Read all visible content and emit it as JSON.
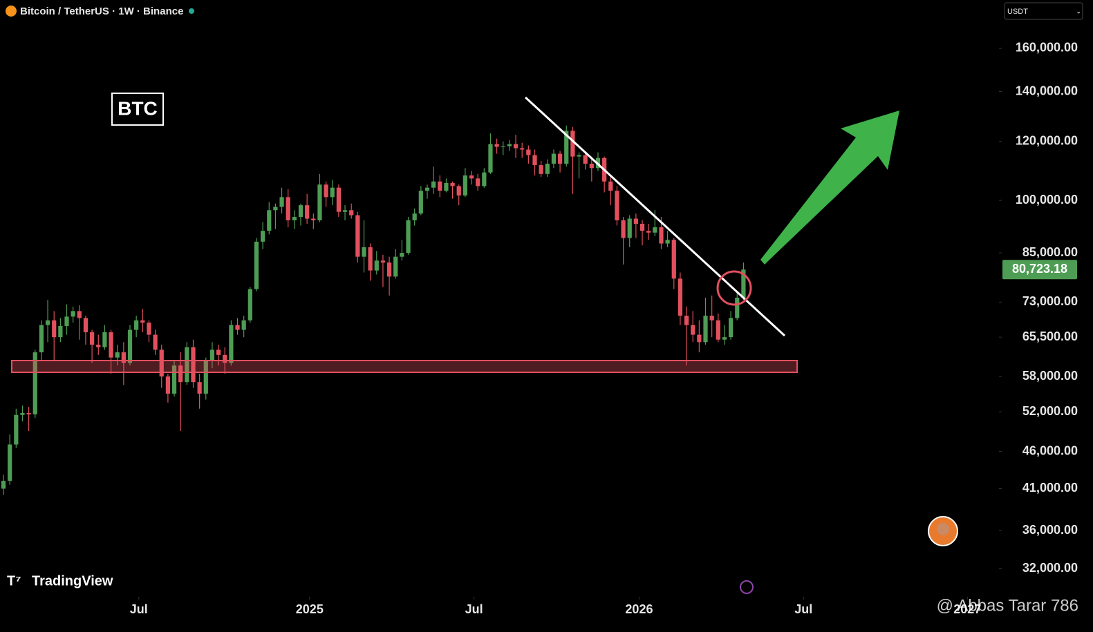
{
  "chart_data": {
    "type": "candlestick",
    "title": "Bitcoin / TetherUS · 1W · Binance",
    "currency": "USDT",
    "annotation": "BTC",
    "brand": "TradingView",
    "watermark": "@ Abbas Tarar 786",
    "log_scale": true,
    "up_color": "#4e9d55",
    "down_color": "#e2505e",
    "last_price_label": "80,723.18",
    "ylim": [
      29600,
      185800
    ],
    "yticks": [
      {
        "value": 160000,
        "label": "160,000.00"
      },
      {
        "value": 140000,
        "label": "140,000.00"
      },
      {
        "value": 120000,
        "label": "120,000.00"
      },
      {
        "value": 100000,
        "label": "100,000.00"
      },
      {
        "value": 85000,
        "label": "85,000.00"
      },
      {
        "value": 73000,
        "label": "73,000.00"
      },
      {
        "value": 65500,
        "label": "65,500.00"
      },
      {
        "value": 58000,
        "label": "58,000.00"
      },
      {
        "value": 52000,
        "label": "52,000.00"
      },
      {
        "value": 46000,
        "label": "46,000.00"
      },
      {
        "value": 41000,
        "label": "41,000.00"
      },
      {
        "value": 36000,
        "label": "36,000.00"
      },
      {
        "value": 32000,
        "label": "32,000.00"
      }
    ],
    "xlim": [
      -0.55,
      157.4
    ],
    "xticks": [
      {
        "value": 21.4,
        "label": "Jul"
      },
      {
        "value": 48.4,
        "label": "2025"
      },
      {
        "value": 74.4,
        "label": "Jul"
      },
      {
        "value": 100.5,
        "label": "2026"
      },
      {
        "value": 126.5,
        "label": "Jul"
      },
      {
        "value": 152.4,
        "label": "2027"
      }
    ],
    "ohlc": [
      [
        41000,
        42800,
        40200,
        42000
      ],
      [
        42000,
        48500,
        41500,
        47000
      ],
      [
        47000,
        52500,
        46500,
        51500
      ],
      [
        51500,
        53000,
        50500,
        51800
      ],
      [
        51800,
        52800,
        49000,
        51600
      ],
      [
        51600,
        63000,
        51000,
        62500
      ],
      [
        62500,
        69000,
        61000,
        68000
      ],
      [
        68000,
        73500,
        64500,
        69000
      ],
      [
        69000,
        71000,
        61000,
        65500
      ],
      [
        65500,
        69500,
        64500,
        67800
      ],
      [
        67800,
        72500,
        66000,
        69800
      ],
      [
        69800,
        72000,
        68500,
        71000
      ],
      [
        71000,
        72300,
        65000,
        69500
      ],
      [
        69500,
        70000,
        64000,
        66500
      ],
      [
        66500,
        67000,
        60500,
        64000
      ],
      [
        64000,
        66000,
        62000,
        63500
      ],
      [
        63500,
        68000,
        63000,
        66500
      ],
      [
        66500,
        67000,
        58500,
        61500
      ],
      [
        61500,
        64000,
        60000,
        62500
      ],
      [
        62500,
        64500,
        56500,
        60500
      ],
      [
        60500,
        68000,
        60000,
        67000
      ],
      [
        67000,
        70000,
        65500,
        69000
      ],
      [
        69000,
        71500,
        66500,
        68500
      ],
      [
        68500,
        69000,
        64500,
        66000
      ],
      [
        66000,
        67000,
        62000,
        63000
      ],
      [
        63000,
        64000,
        56000,
        58000
      ],
      [
        58000,
        58500,
        53500,
        55000
      ],
      [
        55000,
        61000,
        54500,
        60000
      ],
      [
        60000,
        62500,
        49000,
        57000
      ],
      [
        57000,
        64500,
        56500,
        63500
      ],
      [
        63500,
        65000,
        56000,
        57000
      ],
      [
        57000,
        58500,
        52500,
        55000
      ],
      [
        55000,
        61500,
        54000,
        61000
      ],
      [
        61000,
        64500,
        59500,
        63000
      ],
      [
        63000,
        64000,
        60000,
        62000
      ],
      [
        62000,
        63500,
        58500,
        60500
      ],
      [
        60500,
        69000,
        60000,
        68000
      ],
      [
        68000,
        69500,
        66000,
        67000
      ],
      [
        67000,
        70000,
        65500,
        69000
      ],
      [
        69000,
        76500,
        68500,
        76000
      ],
      [
        76000,
        89000,
        75500,
        88000
      ],
      [
        88000,
        93500,
        86000,
        91000
      ],
      [
        91000,
        99500,
        90000,
        97000
      ],
      [
        97000,
        99000,
        91500,
        98000
      ],
      [
        98000,
        104000,
        96000,
        101000
      ],
      [
        101000,
        103500,
        92000,
        94000
      ],
      [
        94000,
        97000,
        91500,
        95000
      ],
      [
        95000,
        99000,
        92500,
        98500
      ],
      [
        98500,
        102000,
        93000,
        94500
      ],
      [
        94500,
        96000,
        91500,
        94000
      ],
      [
        94000,
        108500,
        93500,
        105000
      ],
      [
        105000,
        106000,
        98000,
        101000
      ],
      [
        101000,
        106500,
        98500,
        104000
      ],
      [
        104000,
        105000,
        95000,
        96500
      ],
      [
        96500,
        98500,
        94000,
        97000
      ],
      [
        97000,
        99000,
        94500,
        95500
      ],
      [
        95500,
        96500,
        82500,
        84000
      ],
      [
        84000,
        94000,
        80000,
        86500
      ],
      [
        86500,
        87500,
        78000,
        80500
      ],
      [
        80500,
        85500,
        79500,
        83000
      ],
      [
        83000,
        84500,
        76500,
        82500
      ],
      [
        82500,
        84000,
        74500,
        79000
      ],
      [
        79000,
        86000,
        78500,
        84000
      ],
      [
        84000,
        88500,
        83000,
        85000
      ],
      [
        85000,
        95000,
        84500,
        94000
      ],
      [
        94000,
        97500,
        92500,
        96000
      ],
      [
        96000,
        104500,
        95500,
        103000
      ],
      [
        103000,
        105000,
        100500,
        104000
      ],
      [
        104000,
        111000,
        102000,
        106000
      ],
      [
        106000,
        108000,
        101000,
        103000
      ],
      [
        103000,
        107000,
        102500,
        105500
      ],
      [
        105500,
        106000,
        100500,
        104500
      ],
      [
        104500,
        105000,
        98500,
        101500
      ],
      [
        101500,
        110500,
        101000,
        108000
      ],
      [
        108000,
        109500,
        105000,
        107000
      ],
      [
        107000,
        108500,
        103000,
        104500
      ],
      [
        104500,
        110500,
        104000,
        109000
      ],
      [
        109000,
        123000,
        108500,
        119000
      ],
      [
        119000,
        121000,
        115500,
        118000
      ],
      [
        118000,
        120000,
        115000,
        118200
      ],
      [
        118200,
        120500,
        116500,
        119000
      ],
      [
        119000,
        122500,
        114000,
        117500
      ],
      [
        117500,
        119500,
        114000,
        117000
      ],
      [
        117000,
        118500,
        112000,
        115000
      ],
      [
        115000,
        117000,
        108000,
        111500
      ],
      [
        111500,
        113000,
        107500,
        108500
      ],
      [
        108500,
        113500,
        107500,
        112000
      ],
      [
        112000,
        117000,
        110500,
        115500
      ],
      [
        115500,
        116500,
        109000,
        112000
      ],
      [
        112000,
        126000,
        111000,
        124000
      ],
      [
        124000,
        125500,
        102000,
        114500
      ],
      [
        114500,
        116000,
        107000,
        115000
      ],
      [
        115000,
        116000,
        110000,
        112000
      ],
      [
        112000,
        114500,
        106000,
        110500
      ],
      [
        110500,
        116000,
        109500,
        114000
      ],
      [
        114000,
        114500,
        102500,
        106000
      ],
      [
        106000,
        107500,
        98500,
        103000
      ],
      [
        103000,
        104500,
        92500,
        94000
      ],
      [
        94000,
        95000,
        82000,
        89000
      ],
      [
        89000,
        95500,
        86500,
        94500
      ],
      [
        94500,
        96000,
        89000,
        93000
      ],
      [
        93000,
        94000,
        87000,
        91000
      ],
      [
        91000,
        93000,
        88500,
        90500
      ],
      [
        90500,
        97000,
        89500,
        92000
      ],
      [
        92000,
        95000,
        86000,
        87500
      ],
      [
        87500,
        91000,
        86500,
        88500
      ],
      [
        88500,
        89000,
        76000,
        78500
      ],
      [
        78500,
        80000,
        68000,
        70000
      ],
      [
        70000,
        72000,
        60000,
        68000
      ],
      [
        68000,
        71000,
        64500,
        66000
      ],
      [
        66000,
        69000,
        62500,
        64500
      ],
      [
        64500,
        74000,
        64000,
        70000
      ],
      [
        70000,
        74500,
        65500,
        69000
      ],
      [
        69000,
        70500,
        64500,
        65000
      ],
      [
        65000,
        68000,
        64000,
        65500
      ],
      [
        65500,
        71000,
        65000,
        69500
      ],
      [
        69500,
        75500,
        69000,
        74000
      ],
      [
        74000,
        82500,
        73500,
        80723.18
      ]
    ]
  }
}
